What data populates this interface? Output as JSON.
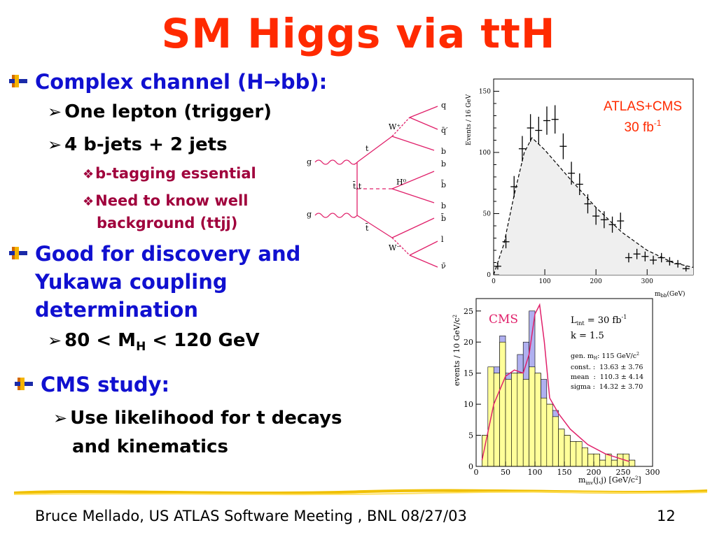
{
  "slide": {
    "title": "SM Higgs via ttH",
    "bullets": {
      "b1": "Complex channel (H→bb):",
      "b1_1": "One lepton (trigger)",
      "b1_2": "4 b-jets + 2 jets",
      "b1_2_1": "b-tagging essential",
      "b1_2_2a": "Need to know well",
      "b1_2_2b": "background (ttjj)",
      "b2a": "Good for discovery and",
      "b2b": "Yukawa coupling",
      "b2c": "determination",
      "b2_1_pre": "80 < M",
      "b2_1_sub": "H",
      "b2_1_post": " < 120 GeV",
      "b3": "CMS study:",
      "b3_1a": "Use likelihood for t decays",
      "b3_1b": "and kinematics"
    },
    "footer": {
      "text": "Bruce Mellado, US ATLAS Software Meeting , BNL 08/27/03",
      "page": "12"
    }
  },
  "feynman": {
    "labels": {
      "g_top": "g",
      "g_bot": "g",
      "t_top": "t",
      "tt": "t̄,t",
      "t_bot": "t̄",
      "wplus": "W⁺",
      "wminus": "W⁻",
      "h0": "H⁰",
      "q": "q",
      "qbar": "q̄′",
      "b1": "b",
      "b2": "b",
      "bbar1": "b̄",
      "b3": "b",
      "bbar2": "b̄",
      "l": "l",
      "nu": "ν̄"
    }
  },
  "atlas_plot": {
    "annotation_line1": "ATLAS+CMS",
    "annotation_line2": "30 fb",
    "annotation_sup": "-1",
    "ylabel": "Events / 16 GeV",
    "xlabel": "m",
    "xlabel_sub": "bb",
    "xlabel_unit": "(GeV)",
    "color_annotation": "#ff2a00",
    "chart_data": {
      "type": "scatter",
      "x_ticks": [
        "0",
        "100",
        "200",
        "300"
      ],
      "y_ticks": [
        "0",
        "50",
        "100",
        "150"
      ],
      "xlim": [
        0,
        390
      ],
      "ylim": [
        0,
        160
      ],
      "points": [
        {
          "x": 8,
          "y": 7
        },
        {
          "x": 24,
          "y": 27
        },
        {
          "x": 40,
          "y": 72
        },
        {
          "x": 56,
          "y": 103
        },
        {
          "x": 72,
          "y": 120
        },
        {
          "x": 88,
          "y": 118
        },
        {
          "x": 104,
          "y": 126
        },
        {
          "x": 120,
          "y": 127
        },
        {
          "x": 136,
          "y": 105
        },
        {
          "x": 152,
          "y": 83
        },
        {
          "x": 168,
          "y": 74
        },
        {
          "x": 184,
          "y": 58
        },
        {
          "x": 200,
          "y": 48
        },
        {
          "x": 216,
          "y": 45
        },
        {
          "x": 232,
          "y": 41
        },
        {
          "x": 248,
          "y": 44
        },
        {
          "x": 264,
          "y": 14
        },
        {
          "x": 280,
          "y": 17
        },
        {
          "x": 296,
          "y": 15
        },
        {
          "x": 312,
          "y": 12
        },
        {
          "x": 328,
          "y": 14
        },
        {
          "x": 344,
          "y": 11
        },
        {
          "x": 360,
          "y": 9
        },
        {
          "x": 376,
          "y": 5
        }
      ],
      "fit_curve": [
        [
          0,
          0
        ],
        [
          20,
          25
        ],
        [
          40,
          65
        ],
        [
          60,
          100
        ],
        [
          75,
          112
        ],
        [
          100,
          102
        ],
        [
          150,
          78
        ],
        [
          200,
          55
        ],
        [
          250,
          35
        ],
        [
          300,
          20
        ],
        [
          350,
          10
        ],
        [
          390,
          6
        ]
      ]
    }
  },
  "cms_plot": {
    "label": "CMS",
    "lint": "L",
    "lint_sub": "int",
    "lint_val": " = 30 fb",
    "lint_sup": "-1",
    "k": "k = 1.5",
    "gen_label": "gen. m",
    "gen_sub": "H",
    "gen_val": ": 115 GeV/c",
    "gen_sup": "2",
    "const": "const. :  13.63 ± 3.76",
    "mean": "mean  :  110.3 ± 4.14",
    "sigma": "sigma :  14.32 ± 3.70",
    "ylabel": "events / 10 GeV/c",
    "ylabel_sup": "2",
    "xlabel": "m",
    "xlabel_sub": "inv",
    "xlabel_rest": "(j,j) [GeV/c",
    "xlabel_sup": "2",
    "xlabel_end": "]",
    "color_signal": "#b0b0f0",
    "color_background": "#ffff99",
    "color_fit": "#e0206a",
    "chart_data": {
      "type": "bar",
      "x_ticks": [
        "0",
        "50",
        "100",
        "150",
        "200",
        "250",
        "300"
      ],
      "y_ticks": [
        "0",
        "5",
        "10",
        "15",
        "20",
        "25"
      ],
      "xlim": [
        0,
        300
      ],
      "ylim": [
        0,
        27
      ],
      "bin_edges_start": 10,
      "bin_width": 10,
      "series": [
        {
          "name": "total",
          "values": [
            5,
            16,
            16,
            21,
            15,
            15,
            18,
            20,
            25,
            15,
            14,
            10,
            9,
            6,
            5,
            4,
            4,
            3,
            2,
            2,
            1,
            2,
            1,
            2,
            2,
            1
          ]
        },
        {
          "name": "background",
          "values": [
            5,
            16,
            15,
            20,
            14,
            15,
            15,
            14,
            16,
            15,
            11,
            10,
            8,
            6,
            5,
            4,
            4,
            3,
            2,
            2,
            1,
            2,
            1,
            2,
            2,
            1
          ]
        }
      ],
      "fit_curve": [
        [
          10,
          1
        ],
        [
          30,
          10
        ],
        [
          50,
          14.5
        ],
        [
          65,
          15.5
        ],
        [
          80,
          15
        ],
        [
          90,
          18
        ],
        [
          100,
          24.5
        ],
        [
          108,
          26
        ],
        [
          116,
          20
        ],
        [
          125,
          11
        ],
        [
          140,
          8.5
        ],
        [
          160,
          6
        ],
        [
          190,
          3.5
        ],
        [
          220,
          2
        ],
        [
          260,
          0.8
        ]
      ]
    }
  }
}
